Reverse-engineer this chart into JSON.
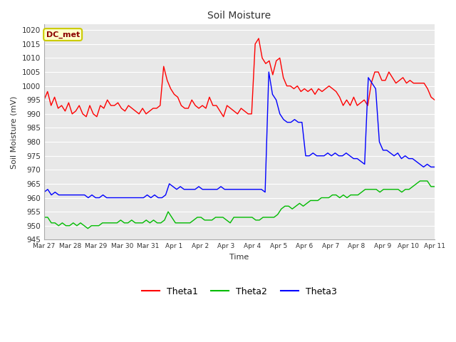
{
  "title": "Soil Moisture",
  "xlabel": "Time",
  "ylabel": "Soil Moisture (mV)",
  "annotation": "DC_met",
  "ylim": [
    945,
    1022
  ],
  "yticks": [
    945,
    950,
    955,
    960,
    965,
    970,
    975,
    980,
    985,
    990,
    995,
    1000,
    1005,
    1010,
    1015,
    1020
  ],
  "fig_color": "#ffffff",
  "plot_bg_color": "#e8e8e8",
  "grid_color": "#ffffff",
  "line_colors": {
    "Theta1": "#ff0000",
    "Theta2": "#00bb00",
    "Theta3": "#0000ff"
  },
  "x_tick_labels": [
    "Mar 27",
    "Mar 28",
    "Mar 29",
    "Mar 30",
    "Mar 31",
    "Apr 1",
    "Apr 2",
    "Apr 3",
    "Apr 4",
    "Apr 5",
    "Apr 6",
    "Apr 7",
    "Apr 8",
    "Apr 9",
    "Apr 10",
    "Apr 11"
  ],
  "x_tick_positions": [
    0,
    1,
    2,
    3,
    4,
    5,
    6,
    7,
    8,
    9,
    10,
    11,
    12,
    13,
    14,
    15
  ],
  "theta1": [
    995,
    998,
    993,
    996,
    992,
    993,
    991,
    994,
    990,
    991,
    993,
    990,
    989,
    993,
    990,
    989,
    993,
    992,
    995,
    993,
    993,
    994,
    992,
    991,
    993,
    992,
    991,
    990,
    992,
    990,
    991,
    992,
    992,
    993,
    1007,
    1002,
    999,
    997,
    996,
    993,
    992,
    992,
    995,
    993,
    992,
    993,
    992,
    996,
    993,
    993,
    991,
    989,
    993,
    992,
    991,
    990,
    992,
    991,
    990,
    990,
    1015,
    1017,
    1010,
    1008,
    1009,
    1004,
    1009,
    1010,
    1003,
    1000,
    1000,
    999,
    1000,
    998,
    999,
    998,
    999,
    997,
    999,
    998,
    999,
    1000,
    999,
    998,
    996,
    993,
    995,
    993,
    996,
    993,
    994,
    995,
    993,
    1001,
    1005,
    1005,
    1002,
    1002,
    1005,
    1003,
    1001,
    1002,
    1003,
    1001,
    1002,
    1001,
    1001,
    1001,
    1001,
    999,
    996,
    995
  ],
  "theta2": [
    953,
    953,
    951,
    951,
    950,
    951,
    950,
    950,
    951,
    950,
    951,
    950,
    949,
    950,
    950,
    950,
    951,
    951,
    951,
    951,
    951,
    952,
    951,
    951,
    952,
    951,
    951,
    951,
    952,
    951,
    952,
    951,
    951,
    952,
    955,
    953,
    951,
    951,
    951,
    951,
    951,
    952,
    953,
    953,
    952,
    952,
    952,
    953,
    953,
    953,
    952,
    951,
    953,
    953,
    953,
    953,
    953,
    953,
    952,
    952,
    953,
    953,
    953,
    953,
    954,
    956,
    957,
    957,
    956,
    957,
    958,
    957,
    958,
    959,
    959,
    959,
    960,
    960,
    960,
    961,
    961,
    960,
    961,
    960,
    961,
    961,
    961,
    962,
    963,
    963,
    963,
    963,
    962,
    963,
    963,
    963,
    963,
    963,
    962,
    963,
    963,
    964,
    965,
    966,
    966,
    966,
    964,
    964
  ],
  "theta3": [
    962,
    963,
    961,
    962,
    961,
    961,
    961,
    961,
    961,
    961,
    961,
    961,
    960,
    961,
    960,
    960,
    961,
    960,
    960,
    960,
    960,
    960,
    960,
    960,
    960,
    960,
    960,
    960,
    961,
    960,
    961,
    960,
    960,
    961,
    965,
    964,
    963,
    964,
    963,
    963,
    963,
    963,
    964,
    963,
    963,
    963,
    963,
    963,
    964,
    963,
    963,
    963,
    963,
    963,
    963,
    963,
    963,
    963,
    963,
    963,
    962,
    1005,
    997,
    995,
    990,
    988,
    987,
    987,
    988,
    987,
    987,
    975,
    975,
    976,
    975,
    975,
    975,
    976,
    975,
    976,
    975,
    975,
    976,
    975,
    974,
    974,
    973,
    972,
    1003,
    1001,
    999,
    980,
    977,
    977,
    976,
    975,
    976,
    974,
    975,
    974,
    974,
    973,
    972,
    971,
    972,
    971,
    971
  ]
}
